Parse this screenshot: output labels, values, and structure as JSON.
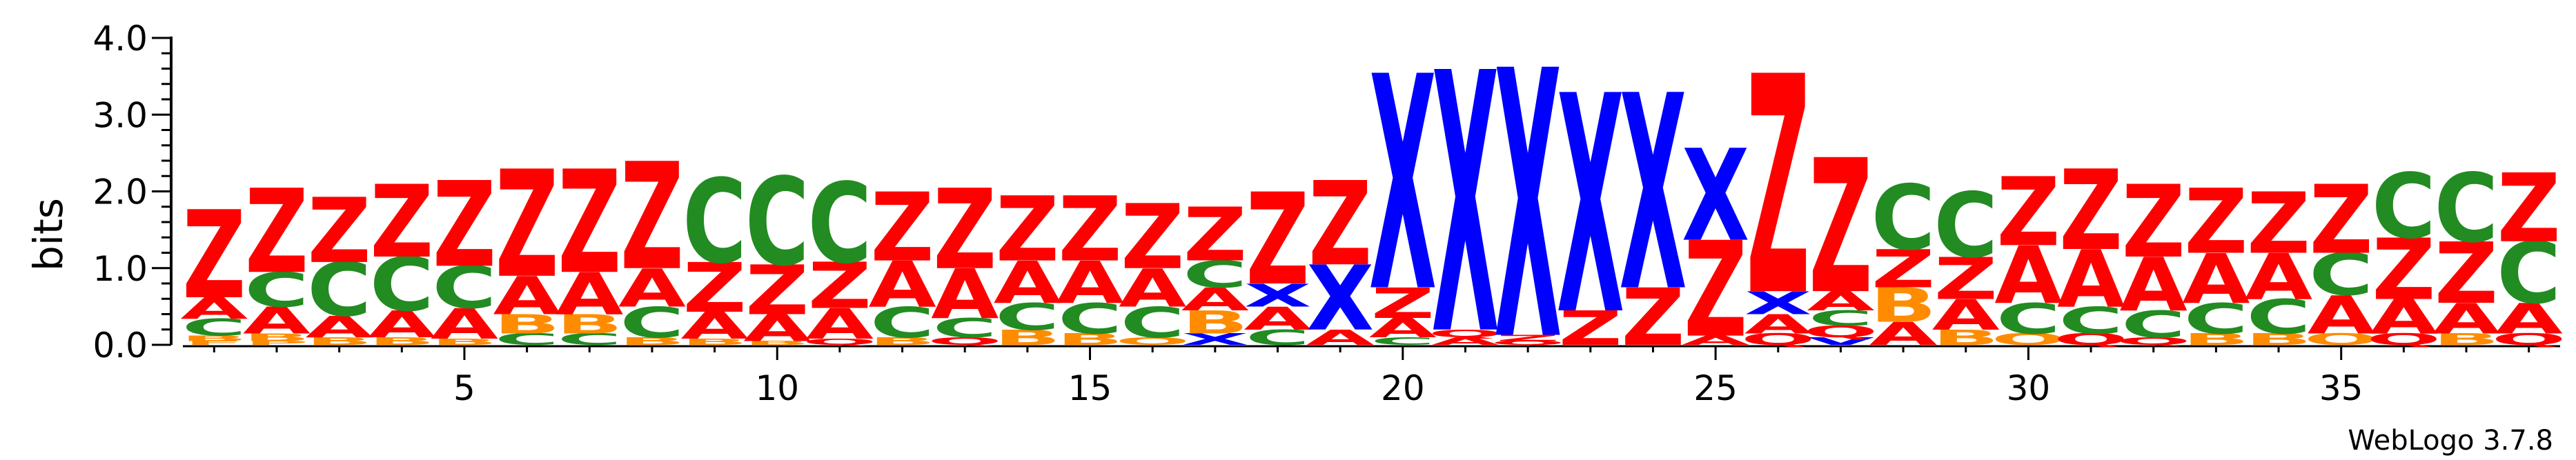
{
  "chart_data": {
    "type": "sequence-logo",
    "ylabel": "bits",
    "ylim": [
      0,
      4.0
    ],
    "yticks": [
      0.0,
      1.0,
      2.0,
      3.0,
      4.0
    ],
    "ytick_labels": [
      "0.0",
      "1.0",
      "2.0",
      "3.0",
      "4.0"
    ],
    "xlim": [
      0.5,
      38.5
    ],
    "xticks": [
      5,
      10,
      15,
      20,
      25,
      30,
      35
    ],
    "xtick_labels": [
      "5",
      "10",
      "15",
      "20",
      "25",
      "30",
      "35"
    ],
    "footer": "WebLogo 3.7.8",
    "colors": {
      "Z": "#ff0000",
      "X": "#0000ff",
      "C": "#228b22",
      "A": "#ff0000",
      "B": "#ff8c00",
      "Q": "#ff0000",
      "P": "#ff8c00",
      "O": "#ff8c00",
      "F": "#ff8c00",
      "V": "#0000ff"
    },
    "positions": [
      {
        "pos": 1,
        "stack": [
          [
            "F",
            0.05
          ],
          [
            "B",
            0.07
          ],
          [
            "C",
            0.22
          ],
          [
            "A",
            0.28
          ],
          [
            "Z",
            1.15
          ]
        ]
      },
      {
        "pos": 2,
        "stack": [
          [
            "P",
            0.05
          ],
          [
            "B",
            0.1
          ],
          [
            "A",
            0.35
          ],
          [
            "C",
            0.45
          ],
          [
            "Z",
            1.1
          ]
        ]
      },
      {
        "pos": 3,
        "stack": [
          [
            "B",
            0.1
          ],
          [
            "A",
            0.28
          ],
          [
            "C",
            0.7
          ],
          [
            "Z",
            0.85
          ]
        ]
      },
      {
        "pos": 4,
        "stack": [
          [
            "B",
            0.1
          ],
          [
            "A",
            0.35
          ],
          [
            "C",
            0.7
          ],
          [
            "Z",
            0.95
          ]
        ]
      },
      {
        "pos": 5,
        "stack": [
          [
            "B",
            0.08
          ],
          [
            "A",
            0.4
          ],
          [
            "C",
            0.55
          ],
          [
            "Z",
            1.12
          ]
        ]
      },
      {
        "pos": 6,
        "stack": [
          [
            "C",
            0.15
          ],
          [
            "B",
            0.25
          ],
          [
            "A",
            0.5
          ],
          [
            "Z",
            1.4
          ]
        ]
      },
      {
        "pos": 7,
        "stack": [
          [
            "C",
            0.15
          ],
          [
            "B",
            0.25
          ],
          [
            "A",
            0.55
          ],
          [
            "Z",
            1.35
          ]
        ]
      },
      {
        "pos": 8,
        "stack": [
          [
            "B",
            0.1
          ],
          [
            "C",
            0.4
          ],
          [
            "A",
            0.5
          ],
          [
            "Z",
            1.4
          ]
        ]
      },
      {
        "pos": 9,
        "stack": [
          [
            "B",
            0.08
          ],
          [
            "A",
            0.35
          ],
          [
            "Z",
            0.65
          ],
          [
            "C",
            1.1
          ]
        ]
      },
      {
        "pos": 10,
        "stack": [
          [
            "B",
            0.05
          ],
          [
            "A",
            0.35
          ],
          [
            "Z",
            0.65
          ],
          [
            "C",
            1.15
          ]
        ]
      },
      {
        "pos": 11,
        "stack": [
          [
            "Q",
            0.08
          ],
          [
            "A",
            0.4
          ],
          [
            "Z",
            0.6
          ],
          [
            "C",
            1.05
          ]
        ]
      },
      {
        "pos": 12,
        "stack": [
          [
            "B",
            0.1
          ],
          [
            "C",
            0.4
          ],
          [
            "A",
            0.6
          ],
          [
            "Z",
            0.9
          ]
        ]
      },
      {
        "pos": 13,
        "stack": [
          [
            "Q",
            0.1
          ],
          [
            "C",
            0.25
          ],
          [
            "A",
            0.65
          ],
          [
            "Z",
            1.05
          ]
        ]
      },
      {
        "pos": 14,
        "stack": [
          [
            "B",
            0.2
          ],
          [
            "C",
            0.35
          ],
          [
            "A",
            0.55
          ],
          [
            "Z",
            0.85
          ]
        ]
      },
      {
        "pos": 15,
        "stack": [
          [
            "B",
            0.15
          ],
          [
            "C",
            0.4
          ],
          [
            "A",
            0.55
          ],
          [
            "Z",
            0.85
          ]
        ]
      },
      {
        "pos": 16,
        "stack": [
          [
            "O",
            0.1
          ],
          [
            "C",
            0.4
          ],
          [
            "A",
            0.5
          ],
          [
            "Z",
            0.85
          ]
        ]
      },
      {
        "pos": 17,
        "stack": [
          [
            "X",
            0.15
          ],
          [
            "B",
            0.3
          ],
          [
            "A",
            0.3
          ],
          [
            "C",
            0.35
          ],
          [
            "Z",
            0.7
          ]
        ]
      },
      {
        "pos": 18,
        "stack": [
          [
            "C",
            0.2
          ],
          [
            "A",
            0.3
          ],
          [
            "X",
            0.3
          ],
          [
            "Z",
            1.2
          ]
        ]
      },
      {
        "pos": 19,
        "stack": [
          [
            "A",
            0.2
          ],
          [
            "X",
            0.85
          ],
          [
            "Z",
            1.1
          ]
        ]
      },
      {
        "pos": 20,
        "stack": [
          [
            "C",
            0.1
          ],
          [
            "A",
            0.25
          ],
          [
            "Z",
            0.4
          ],
          [
            "X",
            2.8
          ]
        ]
      },
      {
        "pos": 21,
        "stack": [
          [
            "A",
            0.1
          ],
          [
            "Q",
            0.1
          ],
          [
            "X",
            3.4
          ]
        ]
      },
      {
        "pos": 22,
        "stack": [
          [
            "Q",
            0.05
          ],
          [
            "Z",
            0.08
          ],
          [
            "X",
            3.5
          ]
        ]
      },
      {
        "pos": 23,
        "stack": [
          [
            "Z",
            0.45
          ],
          [
            "X",
            2.85
          ]
        ]
      },
      {
        "pos": 24,
        "stack": [
          [
            "Z",
            0.75
          ],
          [
            "X",
            2.55
          ]
        ]
      },
      {
        "pos": 25,
        "stack": [
          [
            "A",
            0.12
          ],
          [
            "Z",
            1.25
          ],
          [
            "X",
            1.2
          ]
        ]
      },
      {
        "pos": 26,
        "stack": [
          [
            "Q",
            0.15
          ],
          [
            "A",
            0.25
          ],
          [
            "X",
            0.3
          ],
          [
            "Z",
            2.85
          ]
        ]
      },
      {
        "pos": 27,
        "stack": [
          [
            "V",
            0.1
          ],
          [
            "Q",
            0.15
          ],
          [
            "C",
            0.2
          ],
          [
            "A",
            0.25
          ],
          [
            "Z",
            1.75
          ]
        ]
      },
      {
        "pos": 28,
        "stack": [
          [
            "A",
            0.3
          ],
          [
            "B",
            0.45
          ],
          [
            "Z",
            0.5
          ],
          [
            "C",
            0.85
          ]
        ]
      },
      {
        "pos": 29,
        "stack": [
          [
            "B",
            0.2
          ],
          [
            "A",
            0.4
          ],
          [
            "Z",
            0.55
          ],
          [
            "C",
            0.85
          ]
        ]
      },
      {
        "pos": 30,
        "stack": [
          [
            "O",
            0.15
          ],
          [
            "C",
            0.4
          ],
          [
            "A",
            0.75
          ],
          [
            "Z",
            0.9
          ]
        ]
      },
      {
        "pos": 31,
        "stack": [
          [
            "Q",
            0.15
          ],
          [
            "C",
            0.35
          ],
          [
            "A",
            0.75
          ],
          [
            "Z",
            1.05
          ]
        ]
      },
      {
        "pos": 32,
        "stack": [
          [
            "Q",
            0.1
          ],
          [
            "C",
            0.35
          ],
          [
            "A",
            0.7
          ],
          [
            "Z",
            0.95
          ]
        ]
      },
      {
        "pos": 33,
        "stack": [
          [
            "B",
            0.15
          ],
          [
            "C",
            0.4
          ],
          [
            "A",
            0.65
          ],
          [
            "Z",
            0.85
          ]
        ]
      },
      {
        "pos": 34,
        "stack": [
          [
            "B",
            0.15
          ],
          [
            "C",
            0.45
          ],
          [
            "A",
            0.6
          ],
          [
            "Z",
            0.8
          ]
        ]
      },
      {
        "pos": 35,
        "stack": [
          [
            "O",
            0.15
          ],
          [
            "A",
            0.5
          ],
          [
            "C",
            0.55
          ],
          [
            "Z",
            0.9
          ]
        ]
      },
      {
        "pos": 36,
        "stack": [
          [
            "Q",
            0.15
          ],
          [
            "A",
            0.45
          ],
          [
            "Z",
            0.8
          ],
          [
            "C",
            0.85
          ]
        ]
      },
      {
        "pos": 37,
        "stack": [
          [
            "B",
            0.15
          ],
          [
            "A",
            0.4
          ],
          [
            "Z",
            0.8
          ],
          [
            "C",
            0.9
          ]
        ]
      },
      {
        "pos": 38,
        "stack": [
          [
            "Q",
            0.15
          ],
          [
            "A",
            0.4
          ],
          [
            "C",
            0.8
          ],
          [
            "Z",
            0.9
          ]
        ]
      }
    ]
  }
}
